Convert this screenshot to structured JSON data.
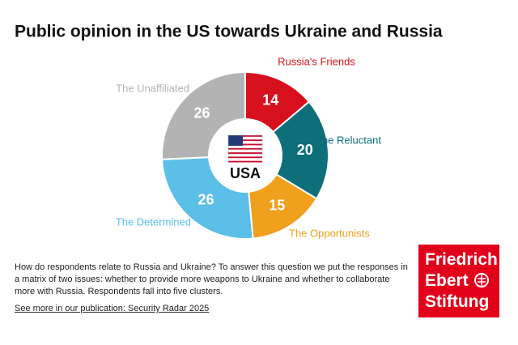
{
  "chart_data": {
    "type": "pie",
    "title": "Public opinion in the US towards Ukraine and Russia",
    "center_label": "USA",
    "categories": [
      "Russia's Friends",
      "The Reluctant",
      "The Opportunists",
      "The Determined",
      "The Unaffiliated"
    ],
    "values": [
      14,
      20,
      15,
      26,
      26
    ],
    "colors": [
      "#d7101e",
      "#0e6f7a",
      "#f0a01c",
      "#5bbfe8",
      "#b3b3b3"
    ]
  },
  "footer": {
    "text": "How do respondents relate to Russia and Ukraine? To answer this question we put the responses in a matrix of two issues: whether to provide more weapons to Ukraine and whether to collaborate more with Russia. Respondents fall into five clusters.",
    "link": "See more in our publication: Security Radar 2025",
    "logo": [
      "Friedrich",
      "Ebert",
      "Stiftung"
    ]
  }
}
